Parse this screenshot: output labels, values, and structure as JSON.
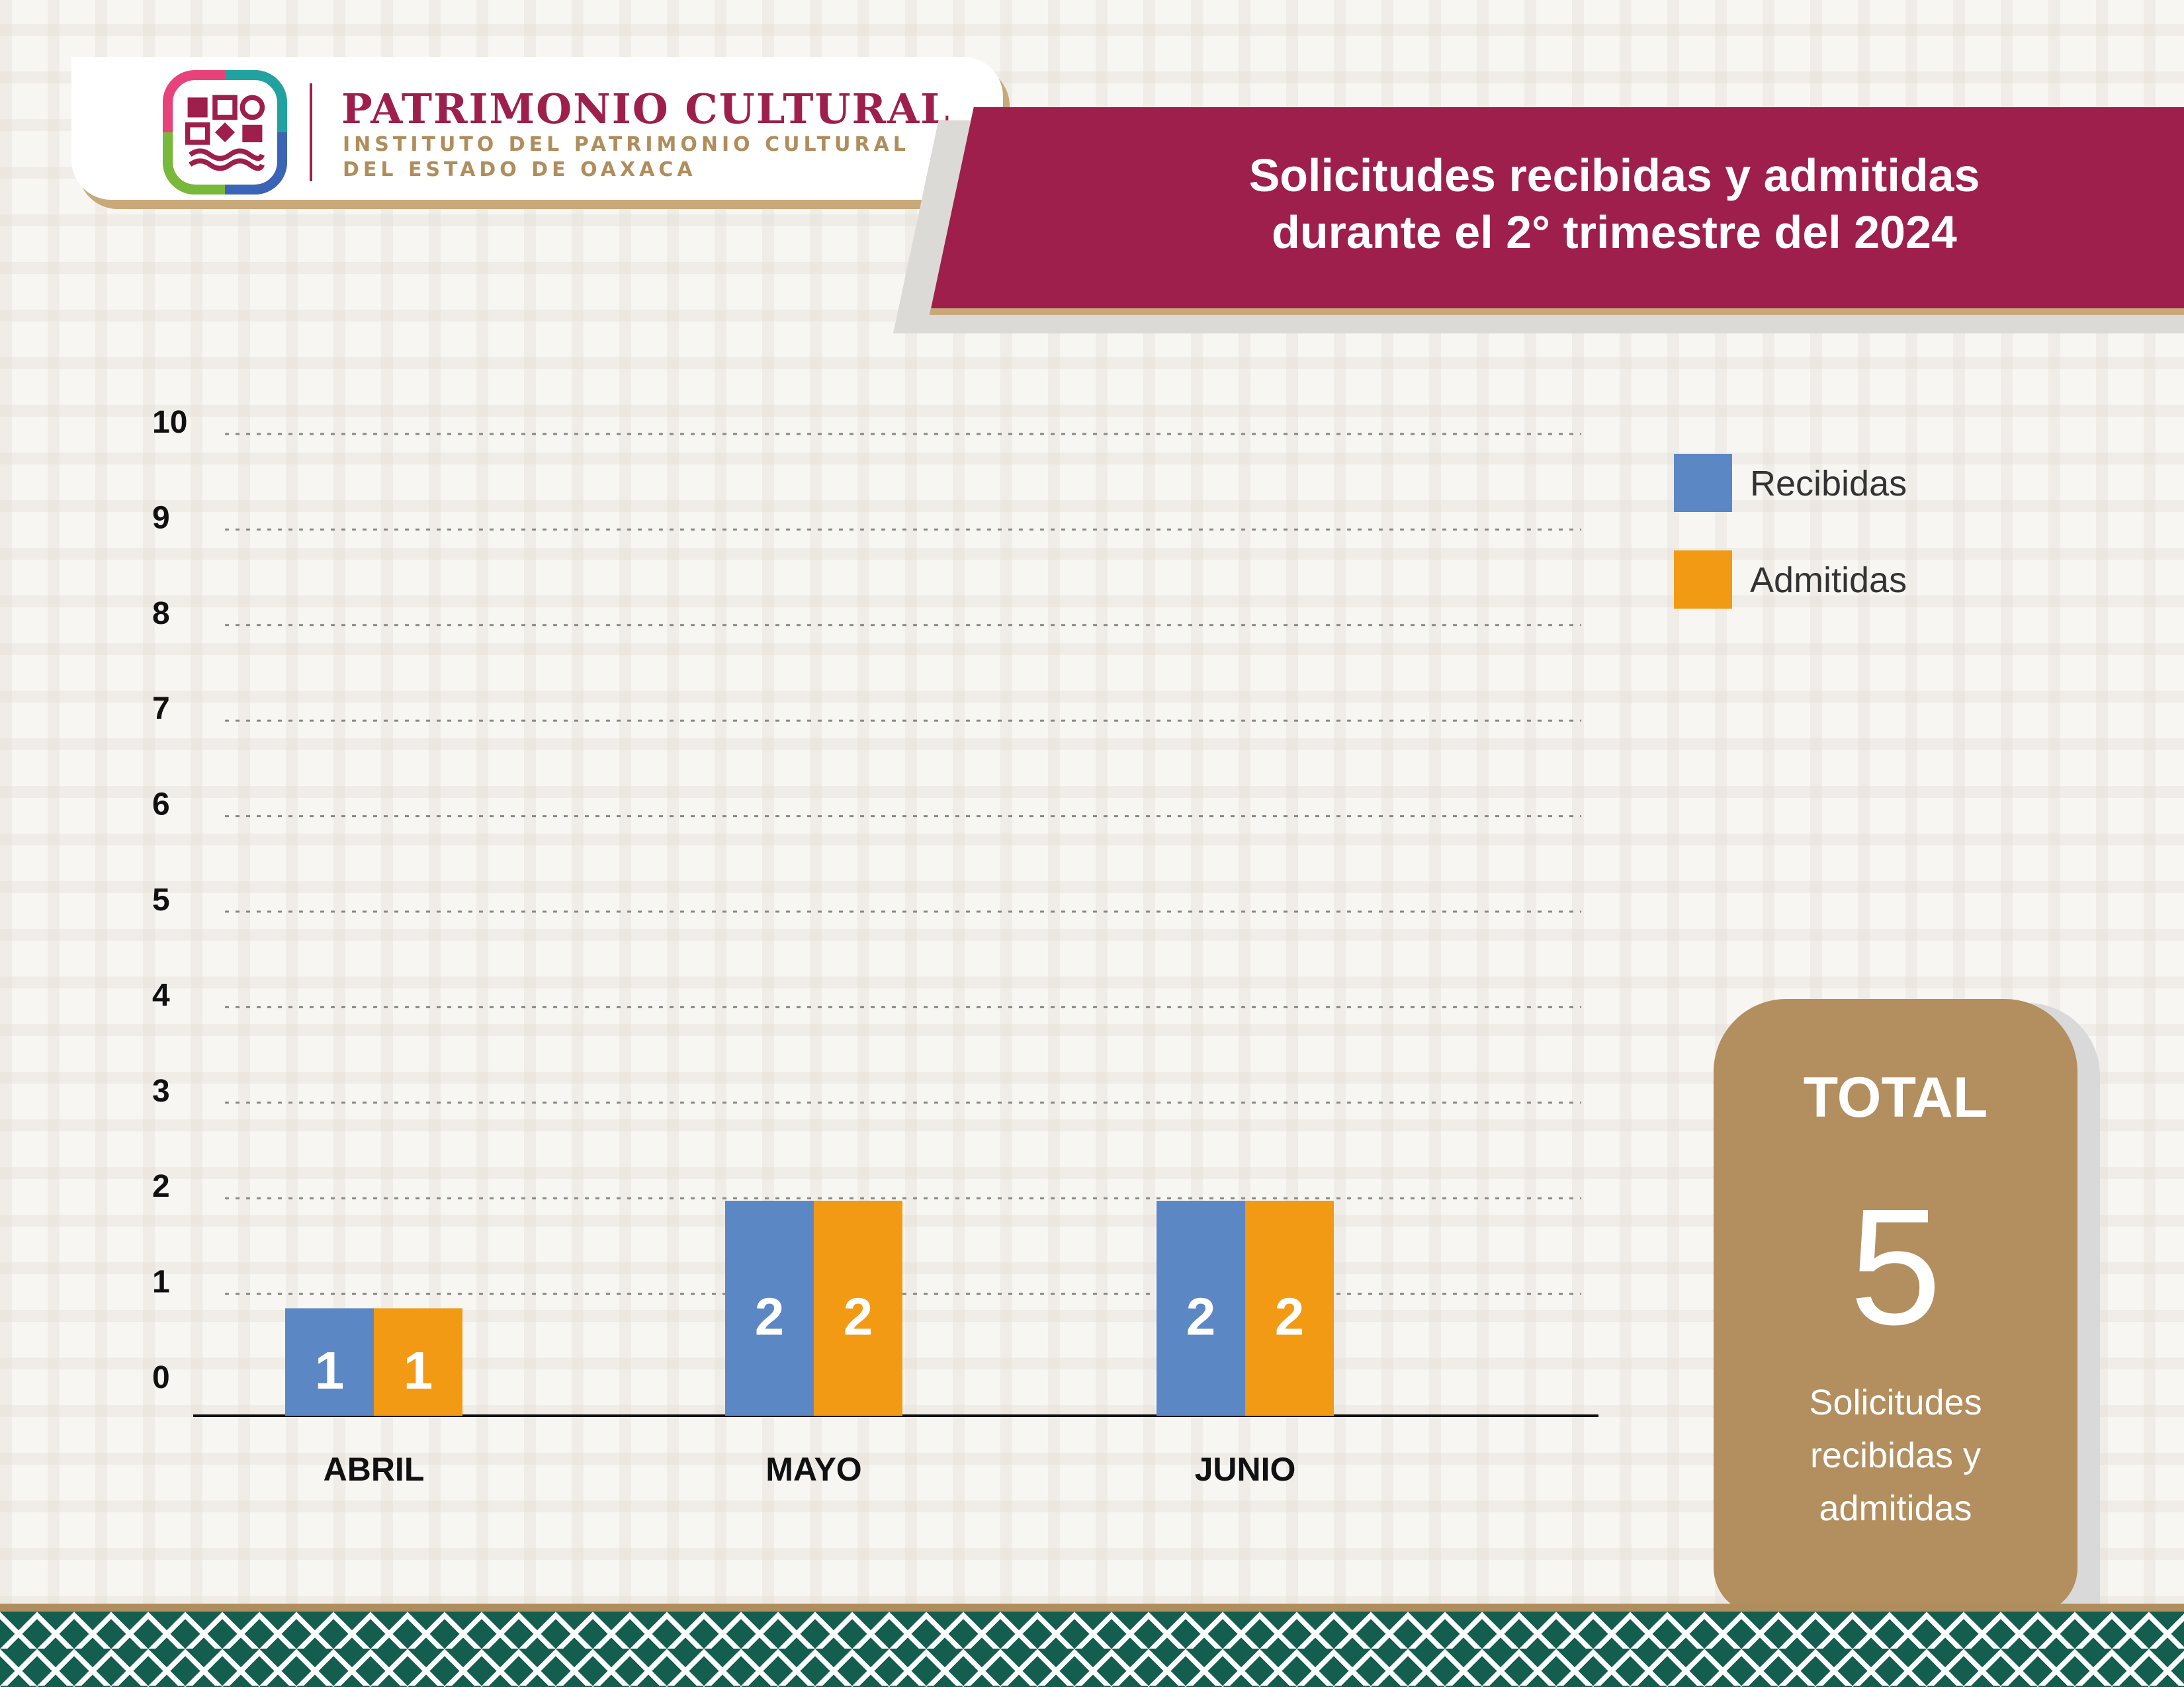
{
  "header": {
    "org_title": "PATRIMONIO CULTURAL",
    "org_subtitle_line1": "INSTITUTO DEL PATRIMONIO CULTURAL",
    "org_subtitle_line2": "DEL ESTADO DE OAXACA",
    "title_line1": "Solicitudes recibidas y admitidas",
    "title_line2": "durante el 2° trimestre del 2024"
  },
  "colors": {
    "brand": "#9e1f4b",
    "gold": "#b38e5f",
    "recibidas": "#5b87c5",
    "admitidas": "#f29a14"
  },
  "chart_data": {
    "type": "bar",
    "categories": [
      "ABRIL",
      "MAYO",
      "JUNIO"
    ],
    "series": [
      {
        "name": "Recibidas",
        "values": [
          1,
          2,
          2
        ],
        "color": "#5b87c5"
      },
      {
        "name": "Admitidas",
        "values": [
          1,
          2,
          2
        ],
        "color": "#f29a14"
      }
    ],
    "yticks": [
      "0",
      "1",
      "2",
      "3",
      "4",
      "5",
      "6",
      "7",
      "8",
      "9",
      "10"
    ],
    "ylim": [
      0,
      10
    ],
    "grid": true,
    "legend": "top-right"
  },
  "legend": {
    "recibidas": "Recibidas",
    "admitidas": "Admitidas"
  },
  "total": {
    "label": "TOTAL",
    "value": "5",
    "caption": "Solicitudes recibidas y admitidas"
  }
}
